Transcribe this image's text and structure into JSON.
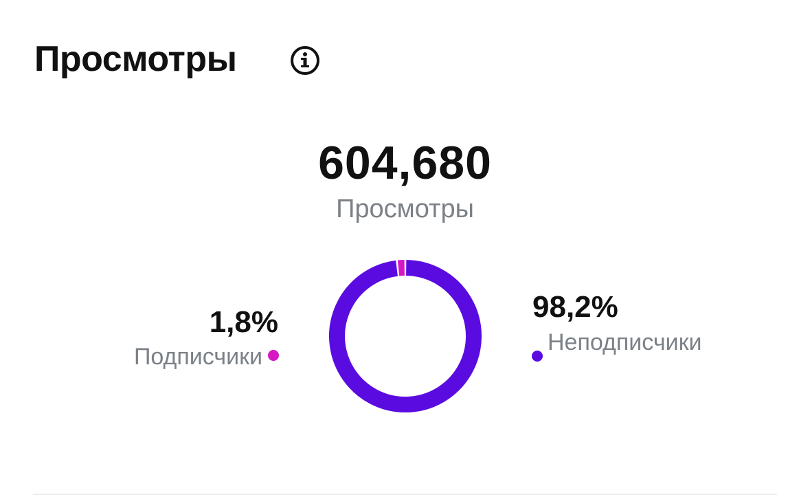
{
  "header": {
    "title": "Просмотры"
  },
  "chart_data": {
    "type": "pie",
    "total": "604,680",
    "subtitle": "Просмотры",
    "categories": [
      "Подписчики",
      "Неподписчики"
    ],
    "values": [
      1.8,
      98.2
    ],
    "value_labels": [
      "1,8%",
      "98,2%"
    ],
    "colors": [
      "#d617c4",
      "#5a0ce0"
    ]
  }
}
